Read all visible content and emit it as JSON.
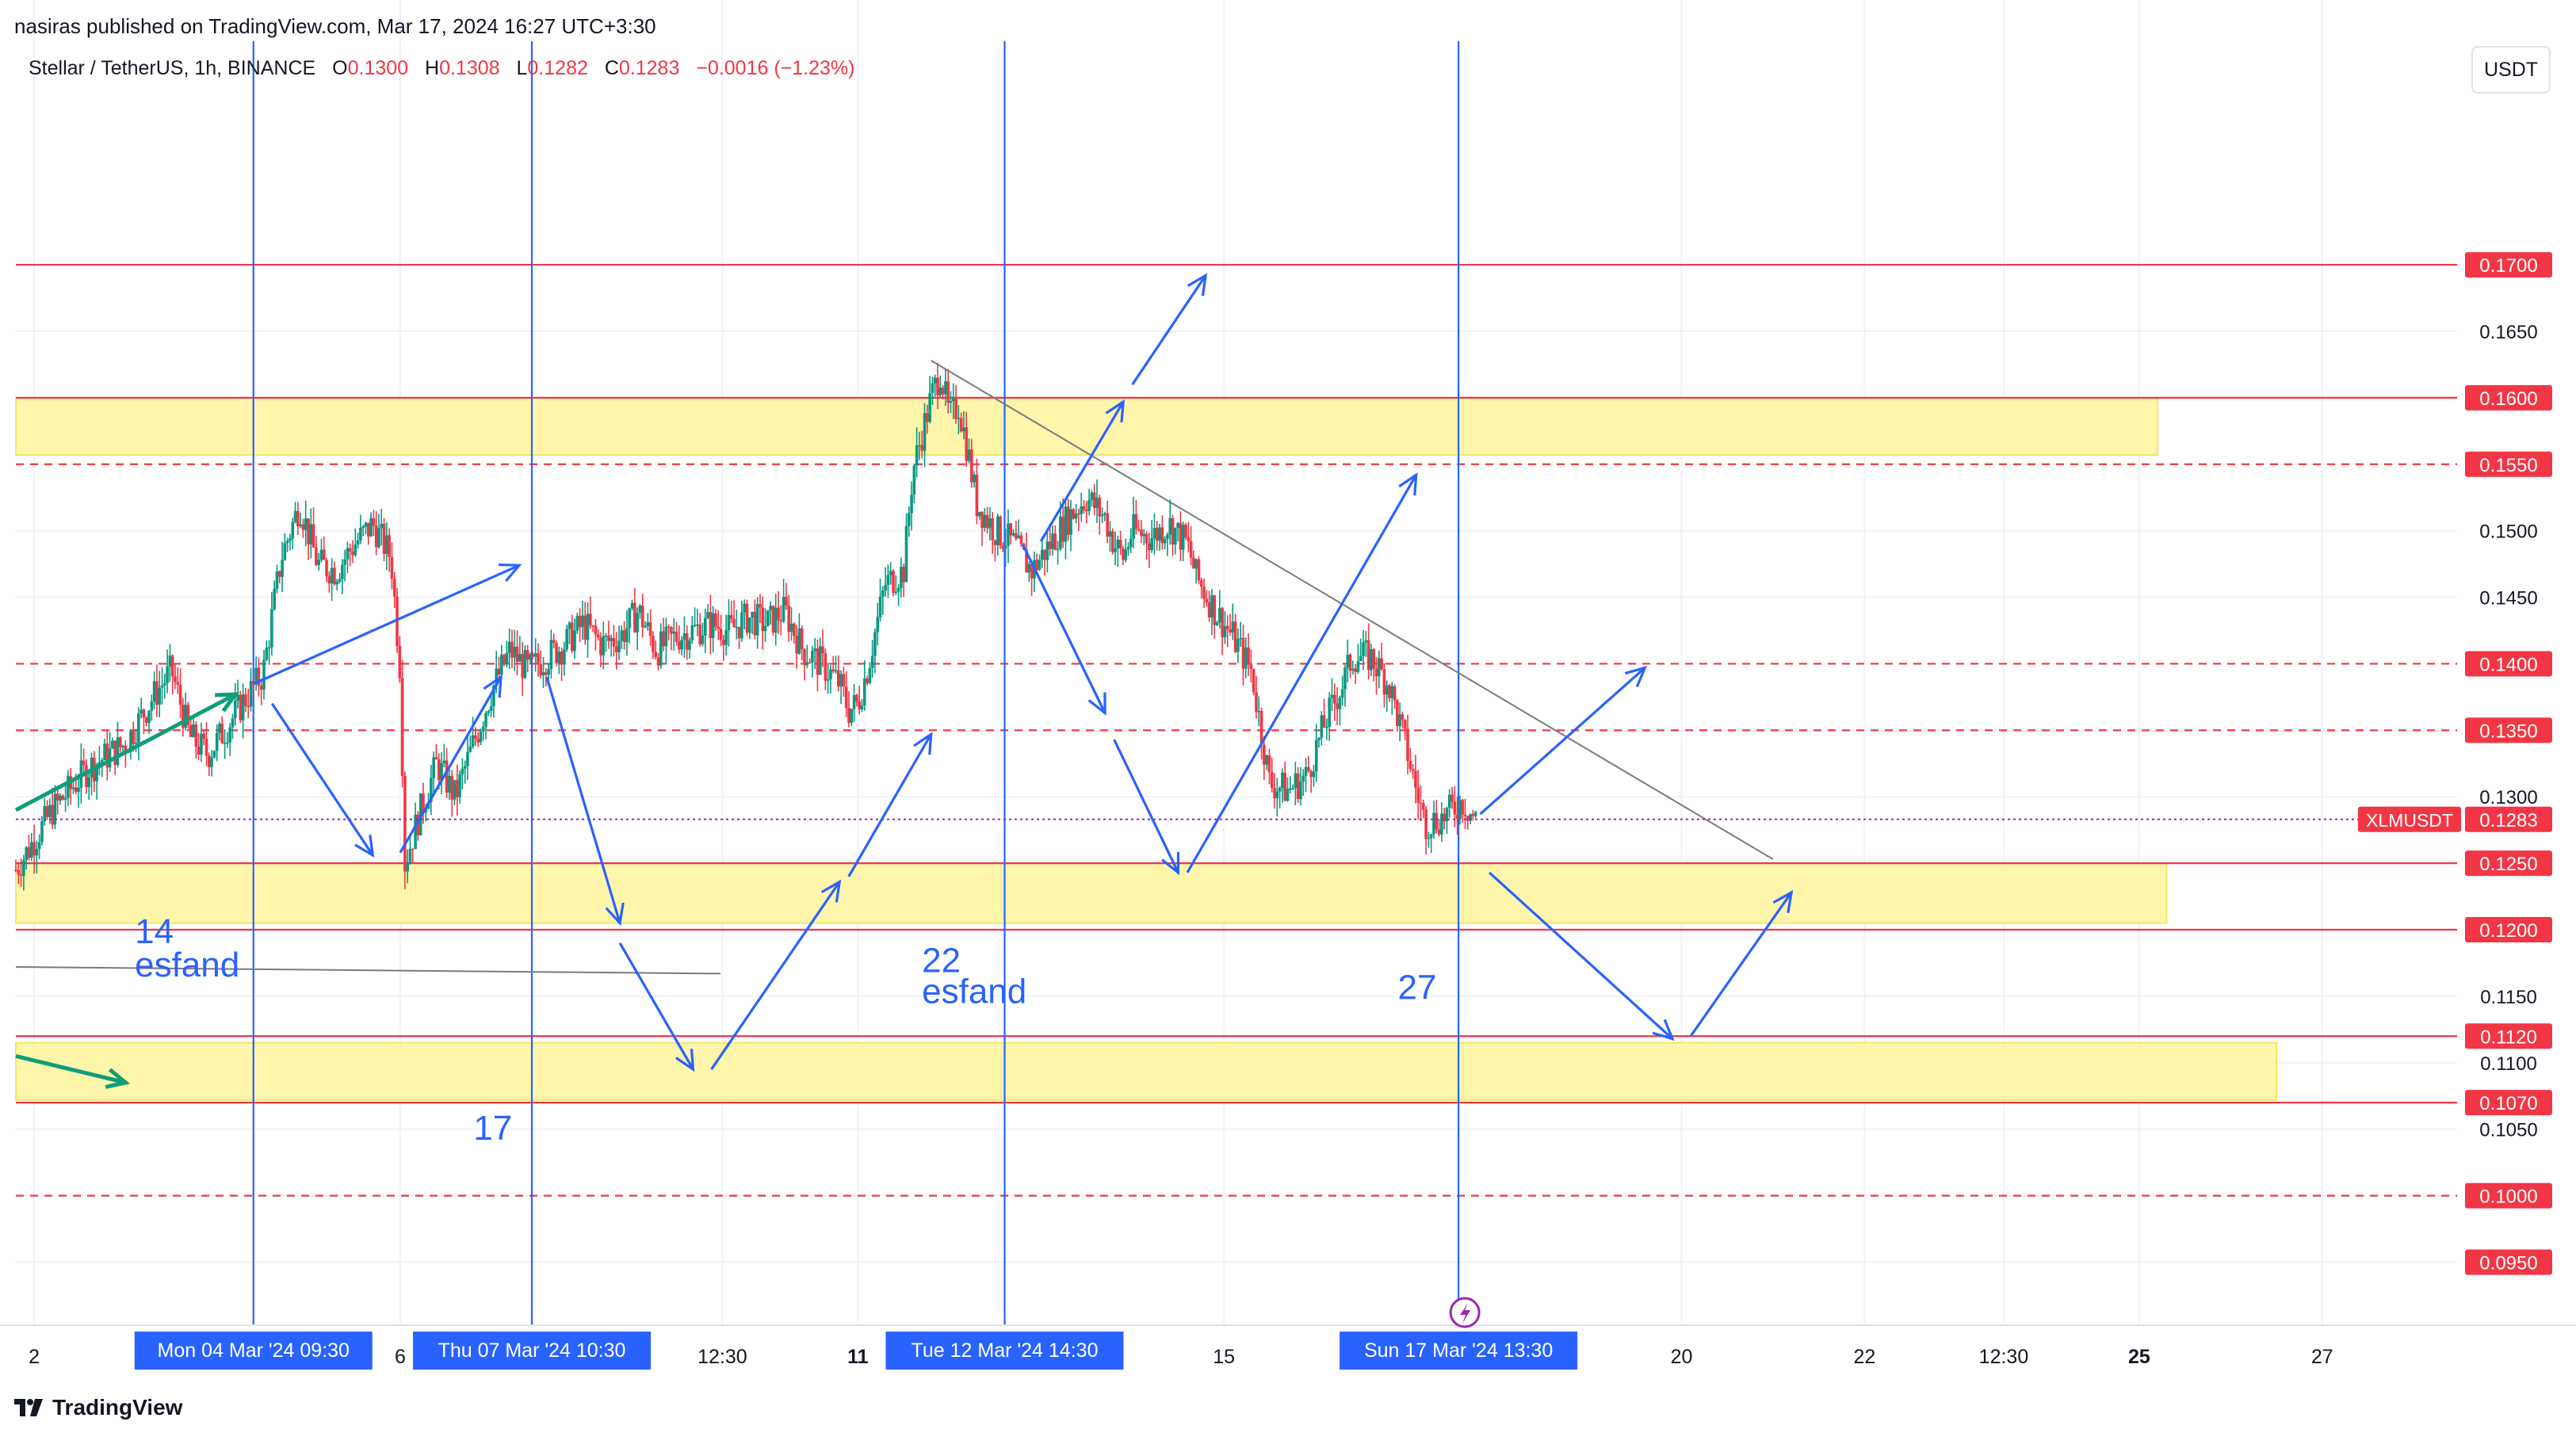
{
  "header": {
    "publisher": "nasiras published on TradingView.com, Mar 17, 2024 16:27 UTC+3:30",
    "symbol": "Stellar / TetherUS, 1h, BINANCE",
    "open_label": "O",
    "open": "0.1300",
    "high_label": "H",
    "high": "0.1308",
    "low_label": "L",
    "low": "0.1282",
    "close_label": "C",
    "close": "0.1283",
    "change": "−0.0016 (−1.23%)",
    "currency_button": "USDT"
  },
  "footer": {
    "logo": "TradingView"
  },
  "colors": {
    "up": "#089981",
    "down": "#f23645",
    "zone": "#fff59d",
    "arrow": "#2962ff",
    "level": "#f23645",
    "vline": "#2962ff",
    "price": "#9c27b0",
    "trend": "#7b7b7b"
  },
  "chart_data": {
    "type": "candlestick",
    "symbol": "XLMUSDT",
    "interval": "1h",
    "ylim": [
      0.0936,
      0.1855
    ],
    "y_ticks": [
      "0.1700",
      "0.1650",
      "0.1600",
      "0.1550",
      "0.1500",
      "0.1450",
      "0.1400",
      "0.1350",
      "0.1300",
      "0.1250",
      "0.1200",
      "0.1150",
      "0.1120",
      "0.1100",
      "0.1070",
      "0.1050",
      "0.1000",
      "0.0950"
    ],
    "highlighted_ticks": [
      "0.1700",
      "0.1600",
      "0.1550",
      "0.1400",
      "0.1350",
      "0.1250",
      "0.1200",
      "0.1120",
      "0.1070",
      "0.1000",
      "0.0950"
    ],
    "x_ticks": [
      {
        "label": "2",
        "day": 2.0
      },
      {
        "label": "6",
        "day": 6.0
      },
      {
        "label": "12:30",
        "day": 9.52
      },
      {
        "label": "11",
        "day": 11.0
      },
      {
        "label": "15",
        "day": 15.0
      },
      {
        "label": "20",
        "day": 20.0
      },
      {
        "label": "22",
        "day": 22.0
      },
      {
        "label": "12:30",
        "day": 23.52
      },
      {
        "label": "25",
        "day": 25.0
      },
      {
        "label": "27",
        "day": 27.0
      }
    ],
    "x_day_range": [
      1.8,
      29.6
    ],
    "current_price": {
      "value": 0.1283,
      "symbol_label": "XLMUSDT",
      "label": "0.1283"
    },
    "levels": [
      {
        "value": 0.17,
        "style": "solid"
      },
      {
        "value": 0.16,
        "style": "solid"
      },
      {
        "value": 0.155,
        "style": "dashed"
      },
      {
        "value": 0.14,
        "style": "dashed"
      },
      {
        "value": 0.135,
        "style": "dashed"
      },
      {
        "value": 0.125,
        "style": "solid"
      },
      {
        "value": 0.12,
        "style": "solid"
      },
      {
        "value": 0.112,
        "style": "solid"
      },
      {
        "value": 0.107,
        "style": "solid"
      },
      {
        "value": 0.1,
        "style": "dashed"
      }
    ],
    "zones": [
      {
        "from_day": 1.8,
        "to_day": 25.2,
        "low": 0.1557,
        "high": 0.16
      },
      {
        "from_day": 1.8,
        "to_day": 25.3,
        "low": 0.1205,
        "high": 0.125
      },
      {
        "from_day": 1.8,
        "to_day": 26.5,
        "low": 0.1072,
        "high": 0.1115
      }
    ],
    "vertical_markers": [
      {
        "day": 4.396,
        "label": "Mon 04 Mar '24   09:30"
      },
      {
        "day": 7.438,
        "label": "Thu 07 Mar '24   10:30"
      },
      {
        "day": 12.604,
        "label": "Tue 12 Mar '24   14:30"
      },
      {
        "day": 17.563,
        "label": "Sun 17 Mar '24   13:30"
      }
    ],
    "annotations": [
      {
        "text": "14",
        "day": 3.1,
        "price": 0.119
      },
      {
        "text": "esfand",
        "day": 3.1,
        "price": 0.1165
      },
      {
        "text": "22",
        "day": 11.7,
        "price": 0.1168
      },
      {
        "text": "esfand",
        "day": 11.7,
        "price": 0.1145
      },
      {
        "text": "27",
        "day": 16.9,
        "price": 0.1148
      },
      {
        "text": "17",
        "day": 6.8,
        "price": 0.1042
      }
    ],
    "trendlines": [
      {
        "from": {
          "day": 11.8,
          "price": 0.1628
        },
        "to": {
          "day": 21.0,
          "price": 0.1253
        }
      },
      {
        "from": {
          "day": 1.8,
          "price": 0.1172
        },
        "to": {
          "day": 9.5,
          "price": 0.1167
        }
      }
    ],
    "arrows": [
      {
        "from": {
          "day": 1.8,
          "price": 0.129
        },
        "to": {
          "day": 4.2,
          "price": 0.1377
        },
        "color": "green"
      },
      {
        "from": {
          "day": 1.8,
          "price": 0.1105
        },
        "to": {
          "day": 3.0,
          "price": 0.1085
        },
        "color": "green"
      },
      {
        "from": {
          "day": 4.4,
          "price": 0.1385
        },
        "to": {
          "day": 7.3,
          "price": 0.1474
        }
      },
      {
        "from": {
          "day": 4.6,
          "price": 0.137
        },
        "to": {
          "day": 5.7,
          "price": 0.1256
        }
      },
      {
        "from": {
          "day": 6.0,
          "price": 0.1258
        },
        "to": {
          "day": 7.1,
          "price": 0.139
        }
      },
      {
        "from": {
          "day": 7.6,
          "price": 0.139
        },
        "to": {
          "day": 8.4,
          "price": 0.1205
        }
      },
      {
        "from": {
          "day": 8.4,
          "price": 0.119
        },
        "to": {
          "day": 9.2,
          "price": 0.1095
        }
      },
      {
        "from": {
          "day": 9.4,
          "price": 0.1095
        },
        "to": {
          "day": 10.8,
          "price": 0.1236
        }
      },
      {
        "from": {
          "day": 10.9,
          "price": 0.124
        },
        "to": {
          "day": 11.8,
          "price": 0.1347
        }
      },
      {
        "from": {
          "day": 13.0,
          "price": 0.1492
        },
        "to": {
          "day": 13.9,
          "price": 0.1597
        }
      },
      {
        "from": {
          "day": 14.0,
          "price": 0.161
        },
        "to": {
          "day": 14.8,
          "price": 0.1692
        }
      },
      {
        "from": {
          "day": 12.8,
          "price": 0.149
        },
        "to": {
          "day": 13.7,
          "price": 0.1363
        }
      },
      {
        "from": {
          "day": 13.8,
          "price": 0.1343
        },
        "to": {
          "day": 14.5,
          "price": 0.1243
        }
      },
      {
        "from": {
          "day": 14.6,
          "price": 0.1243
        },
        "to": {
          "day": 17.1,
          "price": 0.1542
        }
      },
      {
        "from": {
          "day": 17.8,
          "price": 0.1287
        },
        "to": {
          "day": 19.6,
          "price": 0.1397
        }
      },
      {
        "from": {
          "day": 17.9,
          "price": 0.1243
        },
        "to": {
          "day": 19.9,
          "price": 0.1118
        }
      },
      {
        "from": {
          "day": 20.1,
          "price": 0.112
        },
        "to": {
          "day": 21.2,
          "price": 0.1228
        }
      }
    ],
    "candles_close_path": [
      [
        1.8,
        0.1245
      ],
      [
        2.2,
        0.129
      ],
      [
        2.6,
        0.1322
      ],
      [
        3.0,
        0.134
      ],
      [
        3.3,
        0.1375
      ],
      [
        3.5,
        0.1395
      ],
      [
        3.7,
        0.1345
      ],
      [
        3.9,
        0.1332
      ],
      [
        4.1,
        0.1352
      ],
      [
        4.3,
        0.1373
      ],
      [
        4.5,
        0.1392
      ],
      [
        4.7,
        0.148
      ],
      [
        4.9,
        0.152
      ],
      [
        5.1,
        0.1475
      ],
      [
        5.3,
        0.147
      ],
      [
        5.5,
        0.149
      ],
      [
        5.7,
        0.1505
      ],
      [
        5.9,
        0.148
      ],
      [
        6.0,
        0.1395
      ],
      [
        6.05,
        0.125
      ],
      [
        6.2,
        0.1285
      ],
      [
        6.4,
        0.1325
      ],
      [
        6.6,
        0.13
      ],
      [
        6.8,
        0.134
      ],
      [
        7.0,
        0.138
      ],
      [
        7.2,
        0.141
      ],
      [
        7.4,
        0.1395
      ],
      [
        7.6,
        0.1405
      ],
      [
        7.8,
        0.1415
      ],
      [
        8.0,
        0.143
      ],
      [
        8.2,
        0.1415
      ],
      [
        8.4,
        0.142
      ],
      [
        8.6,
        0.144
      ],
      [
        8.8,
        0.141
      ],
      [
        9.0,
        0.142
      ],
      [
        9.2,
        0.1425
      ],
      [
        9.4,
        0.143
      ],
      [
        9.6,
        0.1425
      ],
      [
        9.8,
        0.1435
      ],
      [
        10.0,
        0.143
      ],
      [
        10.2,
        0.144
      ],
      [
        10.4,
        0.141
      ],
      [
        10.6,
        0.14
      ],
      [
        10.8,
        0.1385
      ],
      [
        10.9,
        0.1365
      ],
      [
        11.0,
        0.137
      ],
      [
        11.1,
        0.1395
      ],
      [
        11.3,
        0.146
      ],
      [
        11.5,
        0.147
      ],
      [
        11.6,
        0.1545
      ],
      [
        11.8,
        0.16
      ],
      [
        11.9,
        0.162
      ],
      [
        12.0,
        0.1585
      ],
      [
        12.1,
        0.1595
      ],
      [
        12.2,
        0.156
      ],
      [
        12.3,
        0.152
      ],
      [
        12.5,
        0.15
      ],
      [
        12.7,
        0.149
      ],
      [
        12.9,
        0.147
      ],
      [
        13.1,
        0.149
      ],
      [
        13.3,
        0.151
      ],
      [
        13.5,
        0.1525
      ],
      [
        13.7,
        0.151
      ],
      [
        13.8,
        0.149
      ],
      [
        13.9,
        0.148
      ],
      [
        14.0,
        0.15
      ],
      [
        14.2,
        0.1495
      ],
      [
        14.4,
        0.1505
      ],
      [
        14.6,
        0.149
      ],
      [
        14.7,
        0.1465
      ],
      [
        14.9,
        0.144
      ],
      [
        15.1,
        0.142
      ],
      [
        15.3,
        0.1395
      ],
      [
        15.5,
        0.131
      ],
      [
        15.7,
        0.1305
      ],
      [
        15.9,
        0.1315
      ],
      [
        16.1,
        0.1355
      ],
      [
        16.3,
        0.1385
      ],
      [
        16.4,
        0.1405
      ],
      [
        16.6,
        0.1405
      ],
      [
        16.8,
        0.1385
      ],
      [
        17.0,
        0.1335
      ],
      [
        17.1,
        0.1305
      ],
      [
        17.2,
        0.128
      ],
      [
        17.4,
        0.1285
      ],
      [
        17.6,
        0.1297
      ],
      [
        17.75,
        0.1283
      ]
    ]
  }
}
